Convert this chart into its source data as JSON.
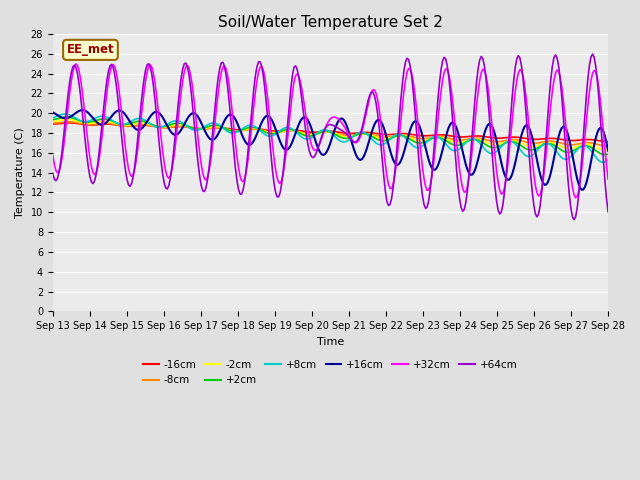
{
  "title": "Soil/Water Temperature Set 2",
  "xlabel": "Time",
  "ylabel": "Temperature (C)",
  "ylim": [
    0,
    28
  ],
  "yticks": [
    0,
    2,
    4,
    6,
    8,
    10,
    12,
    14,
    16,
    18,
    20,
    22,
    24,
    26,
    28
  ],
  "x_start_day": 13,
  "x_end_day": 28,
  "x_tick_days": [
    13,
    14,
    15,
    16,
    17,
    18,
    19,
    20,
    21,
    22,
    23,
    24,
    25,
    26,
    27,
    28
  ],
  "annotation_text": "EE_met",
  "annotation_bg": "#ffffcc",
  "annotation_border": "#996600",
  "annotation_text_color": "#990000",
  "bg_color": "#e0e0e0",
  "plot_bg_color": "#ebebeb",
  "series": [
    {
      "label": "-16cm",
      "color": "#ff0000",
      "lw": 1.2
    },
    {
      "label": "-8cm",
      "color": "#ff8800",
      "lw": 1.2
    },
    {
      "label": "-2cm",
      "color": "#ffff00",
      "lw": 1.2
    },
    {
      "label": "+2cm",
      "color": "#00cc00",
      "lw": 1.2
    },
    {
      "label": "+8cm",
      "color": "#00cccc",
      "lw": 1.2
    },
    {
      "label": "+16cm",
      "color": "#000099",
      "lw": 1.5
    },
    {
      "label": "+32cm",
      "color": "#ff00ff",
      "lw": 1.2
    },
    {
      "label": "+64cm",
      "color": "#9900cc",
      "lw": 1.2
    }
  ],
  "grid_color": "#ffffff",
  "title_fontsize": 11,
  "tick_fontsize": 7,
  "axis_label_fontsize": 8
}
